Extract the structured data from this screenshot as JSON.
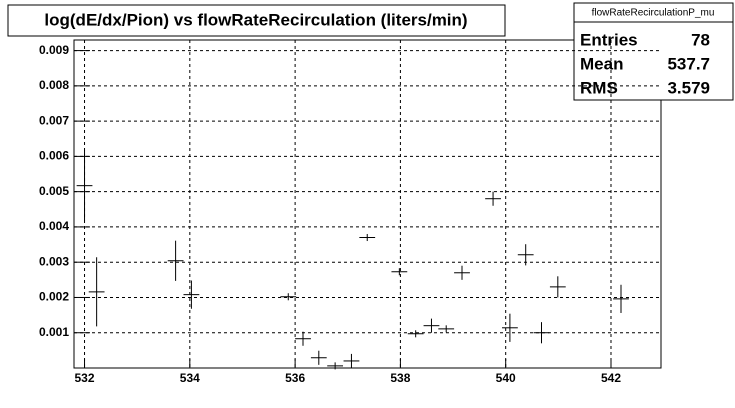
{
  "chart_data": {
    "type": "errorbar",
    "title": "log(dE/dx/Pion) vs flowRateRecirculation (liters/min)",
    "x": [
      532.0,
      532.23,
      533.73,
      534.03,
      535.87,
      536.15,
      536.45,
      536.76,
      537.07,
      537.37,
      537.98,
      538.29,
      538.59,
      538.87,
      539.17,
      539.76,
      540.08,
      540.38,
      540.68,
      540.99,
      542.19
    ],
    "xerr": 0.15,
    "series": [
      {
        "color": "#000000",
        "values": [
          0.00517,
          0.00216,
          0.00304,
          0.00208,
          0.00202,
          0.00083,
          0.00029,
          6e-05,
          0.0002,
          0.0037,
          0.00273,
          0.00097,
          0.0012,
          0.00111,
          0.0027,
          0.0048,
          0.00114,
          0.00321,
          0.001,
          0.0023,
          0.00196
        ],
        "yerr": [
          0.001,
          0.00098,
          0.00057,
          0.0004,
          0.0001,
          0.0002,
          0.0002,
          0.0001,
          0.0002,
          0.0001,
          0.0001,
          0.0001,
          0.0002,
          0.0001,
          0.0002,
          0.0002,
          0.0004,
          0.0003,
          0.0003,
          0.0003,
          0.0004
        ]
      }
    ],
    "xlim": [
      531.8,
      542.95
    ],
    "ylim": [
      0,
      0.0093
    ],
    "xticks": [
      532,
      534,
      536,
      538,
      540,
      542
    ],
    "yticks": [
      0.001,
      0.002,
      0.003,
      0.004,
      0.005,
      0.006,
      0.007,
      0.008,
      0.009
    ],
    "grid": true,
    "stats": {
      "title": "flowRateRecirculationP_mu",
      "rows": [
        {
          "label": "Entries",
          "value": 78
        },
        {
          "label": "Mean",
          "value": 537.7
        },
        {
          "label": "RMS",
          "value": 3.579
        }
      ]
    }
  }
}
